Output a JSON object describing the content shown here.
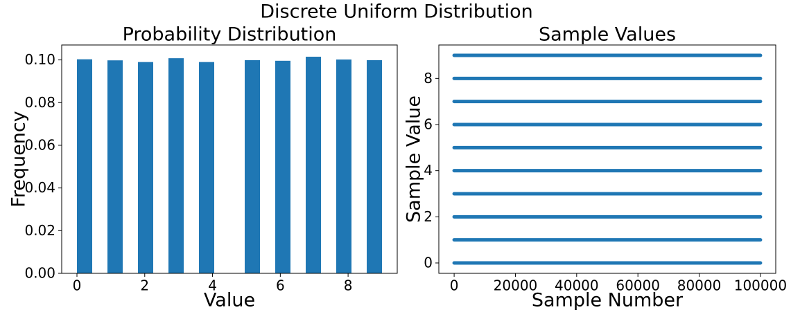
{
  "title": "Discrete Uniform Distribution",
  "chart_data": [
    {
      "type": "histogram",
      "title": "Probability Distribution",
      "x_label": "Value",
      "y_label": "Frequency",
      "bins": [
        0,
        0.45,
        0.9,
        1.35,
        1.8,
        2.25,
        2.7,
        3.15,
        3.6,
        4.05,
        4.5,
        4.95,
        5.4,
        5.85,
        6.3,
        6.75,
        7.2,
        7.65,
        8.1,
        8.55,
        9
      ],
      "values": [
        0.1003,
        0,
        0.0998,
        0,
        0.099,
        0,
        0.1008,
        0,
        0.099,
        0,
        0,
        0.0999,
        0,
        0.0996,
        0,
        0.1015,
        0,
        0.1002,
        0,
        0.0999
      ],
      "color": "#1f77b4",
      "xlim": [
        -0.45,
        9.45
      ],
      "xticks": [
        0,
        2,
        4,
        6,
        8
      ],
      "ylim": [
        0,
        0.107
      ],
      "yticks": [
        {
          "value": 0,
          "label": "0.00"
        },
        {
          "value": 0.02,
          "label": "0.02"
        },
        {
          "value": 0.04,
          "label": "0.04"
        },
        {
          "value": 0.06,
          "label": "0.06"
        },
        {
          "value": 0.08,
          "label": "0.08"
        },
        {
          "value": 0.1,
          "label": "0.10"
        }
      ]
    },
    {
      "type": "scatter",
      "title": "Sample Values",
      "x_label": "Sample Number",
      "y_label": "Sample Value",
      "x": [
        0,
        99999
      ],
      "levels": [
        0,
        1,
        2,
        3,
        4,
        5,
        6,
        7,
        8,
        9
      ],
      "color": "#1f77b4",
      "xlim": [
        -5000,
        105000
      ],
      "xticks": [
        0,
        20000,
        40000,
        60000,
        80000,
        100000
      ],
      "ylim": [
        -0.45,
        9.45
      ],
      "yticks": [
        0,
        2,
        4,
        6,
        8
      ]
    }
  ]
}
